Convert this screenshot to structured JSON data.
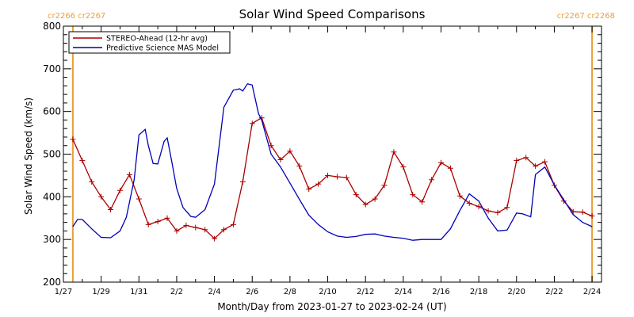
{
  "chart_data": {
    "type": "line",
    "title": "Solar Wind Speed Comparisons",
    "xlabel": "Month/Day from 2023-01-27 to 2023-02-24 (UT)",
    "ylabel": "Solar Wind Speed (km/s)",
    "xlim": [
      "2023-01-27",
      "2023-02-24T12:00"
    ],
    "ylim": [
      200,
      800
    ],
    "x_ticks": [
      {
        "date": "2023-01-27",
        "label": "1/27"
      },
      {
        "date": "2023-01-29",
        "label": "1/29"
      },
      {
        "date": "2023-01-31",
        "label": "1/31"
      },
      {
        "date": "2023-02-02",
        "label": "2/2"
      },
      {
        "date": "2023-02-04",
        "label": "2/4"
      },
      {
        "date": "2023-02-06",
        "label": "2/6"
      },
      {
        "date": "2023-02-08",
        "label": "2/8"
      },
      {
        "date": "2023-02-10",
        "label": "2/10"
      },
      {
        "date": "2023-02-12",
        "label": "2/12"
      },
      {
        "date": "2023-02-14",
        "label": "2/14"
      },
      {
        "date": "2023-02-16",
        "label": "2/16"
      },
      {
        "date": "2023-02-18",
        "label": "2/18"
      },
      {
        "date": "2023-02-20",
        "label": "2/20"
      },
      {
        "date": "2023-02-22",
        "label": "2/22"
      },
      {
        "date": "2023-02-24",
        "label": "2/24"
      }
    ],
    "y_ticks": [
      200,
      300,
      400,
      500,
      600,
      700,
      800
    ],
    "carrington_markers": [
      {
        "date": "2023-01-27T12:00",
        "label": "cr2266 cr2267",
        "color": "#e8a03c"
      },
      {
        "date": "2023-02-24T00:00",
        "label": "cr2267 cr2268",
        "color": "#e8a03c"
      }
    ],
    "legend_position": "top-left",
    "series": [
      {
        "name": "STEREO-Ahead (12-hr avg)",
        "color": "#aa0000",
        "marker": "plus",
        "x": [
          "2023-01-27T12:00",
          "2023-01-28T00:00",
          "2023-01-28T12:00",
          "2023-01-29T00:00",
          "2023-01-29T12:00",
          "2023-01-30T00:00",
          "2023-01-30T12:00",
          "2023-01-31T00:00",
          "2023-01-31T12:00",
          "2023-02-01T00:00",
          "2023-02-01T12:00",
          "2023-02-02T00:00",
          "2023-02-02T12:00",
          "2023-02-03T00:00",
          "2023-02-03T12:00",
          "2023-02-04T00:00",
          "2023-02-04T12:00",
          "2023-02-05T00:00",
          "2023-02-05T12:00",
          "2023-02-06T00:00",
          "2023-02-06T12:00",
          "2023-02-07T00:00",
          "2023-02-07T12:00",
          "2023-02-08T00:00",
          "2023-02-08T12:00",
          "2023-02-09T00:00",
          "2023-02-09T12:00",
          "2023-02-10T00:00",
          "2023-02-10T12:00",
          "2023-02-11T00:00",
          "2023-02-11T12:00",
          "2023-02-12T00:00",
          "2023-02-12T12:00",
          "2023-02-13T00:00",
          "2023-02-13T12:00",
          "2023-02-14T00:00",
          "2023-02-14T12:00",
          "2023-02-15T00:00",
          "2023-02-15T12:00",
          "2023-02-16T00:00",
          "2023-02-16T12:00",
          "2023-02-17T00:00",
          "2023-02-17T12:00",
          "2023-02-18T00:00",
          "2023-02-18T12:00",
          "2023-02-19T00:00",
          "2023-02-19T12:00",
          "2023-02-20T00:00",
          "2023-02-20T12:00",
          "2023-02-21T00:00",
          "2023-02-21T12:00",
          "2023-02-22T00:00",
          "2023-02-22T12:00",
          "2023-02-23T00:00",
          "2023-02-23T12:00",
          "2023-02-24T00:00"
        ],
        "values": [
          535,
          485,
          435,
          400,
          370,
          415,
          452,
          395,
          335,
          342,
          350,
          320,
          333,
          328,
          323,
          302,
          323,
          335,
          435,
          572,
          585,
          520,
          487,
          507,
          472,
          418,
          430,
          450,
          447,
          445,
          405,
          382,
          395,
          427,
          505,
          470,
          405,
          388,
          440,
          480,
          467,
          402,
          385,
          377,
          367,
          363,
          375,
          485,
          492,
          472,
          482,
          427,
          390,
          365,
          364,
          355
        ]
      },
      {
        "name": "Predictive Science MAS Model",
        "color": "#0000bb",
        "x": [
          "2023-01-27T12:00",
          "2023-01-27T18:00",
          "2023-01-28T00:00",
          "2023-01-28T12:00",
          "2023-01-29T00:00",
          "2023-01-29T12:00",
          "2023-01-30T00:00",
          "2023-01-30T08:00",
          "2023-01-30T18:00",
          "2023-01-31T00:00",
          "2023-01-31T08:00",
          "2023-01-31T12:00",
          "2023-01-31T18:00",
          "2023-02-01T00:00",
          "2023-02-01T08:00",
          "2023-02-01T12:00",
          "2023-02-01T18:00",
          "2023-02-02T00:00",
          "2023-02-02T08:00",
          "2023-02-02T18:00",
          "2023-02-03T00:00",
          "2023-02-03T12:00",
          "2023-02-04T00:00",
          "2023-02-04T12:00",
          "2023-02-05T00:00",
          "2023-02-05T08:00",
          "2023-02-05T12:00",
          "2023-02-05T18:00",
          "2023-02-06T00:00",
          "2023-02-06T08:00",
          "2023-02-06T12:00",
          "2023-02-07T00:00",
          "2023-02-07T12:00",
          "2023-02-08T00:00",
          "2023-02-08T12:00",
          "2023-02-09T00:00",
          "2023-02-09T12:00",
          "2023-02-10T00:00",
          "2023-02-10T12:00",
          "2023-02-11T00:00",
          "2023-02-11T12:00",
          "2023-02-12T00:00",
          "2023-02-12T12:00",
          "2023-02-13T00:00",
          "2023-02-13T12:00",
          "2023-02-14T00:00",
          "2023-02-14T12:00",
          "2023-02-15T00:00",
          "2023-02-15T12:00",
          "2023-02-16T00:00",
          "2023-02-16T12:00",
          "2023-02-17T00:00",
          "2023-02-17T12:00",
          "2023-02-18T00:00",
          "2023-02-18T12:00",
          "2023-02-19T00:00",
          "2023-02-19T12:00",
          "2023-02-20T00:00",
          "2023-02-20T08:00",
          "2023-02-20T18:00",
          "2023-02-21T00:00",
          "2023-02-21T12:00",
          "2023-02-22T00:00",
          "2023-02-22T12:00",
          "2023-02-23T00:00",
          "2023-02-23T12:00",
          "2023-02-24T00:00"
        ],
        "values": [
          330,
          347,
          347,
          325,
          305,
          304,
          320,
          352,
          440,
          545,
          558,
          520,
          478,
          477,
          530,
          538,
          480,
          420,
          375,
          354,
          352,
          370,
          430,
          610,
          650,
          653,
          648,
          665,
          662,
          595,
          580,
          500,
          470,
          432,
          394,
          357,
          335,
          318,
          308,
          305,
          307,
          312,
          313,
          308,
          305,
          303,
          298,
          300,
          300,
          300,
          325,
          368,
          407,
          390,
          350,
          320,
          322,
          362,
          360,
          353,
          452,
          470,
          428,
          393,
          358,
          340,
          330
        ]
      }
    ]
  }
}
